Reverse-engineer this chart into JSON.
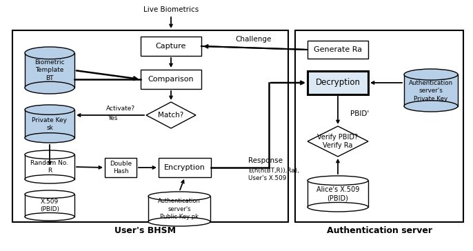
{
  "bg_color": "#ffffff",
  "user_bhsm_label": "User's BHSM",
  "auth_server_label": "Authentication server",
  "live_biometrics": "Live Biometrics",
  "capture_label": "Capture",
  "comparison_label": "Comparison",
  "match_label": "Match?",
  "activate_label": "Activate?",
  "yes_label": "Yes",
  "double_hash_label": "Double\nHash",
  "encryption_label": "Encryption",
  "generate_ra_label": "Generate Ra",
  "decryption_label": "Decryption",
  "verify_label": "Verify PBID?\nVerify Ra",
  "biometric_template_label": "Biometric\nTemplate\nBT",
  "private_key_label": "Private Key\nsk",
  "random_no_label": "Random No.\nR",
  "x509_label": "X.509\n(PBID)",
  "auth_pubkey_label": "Authentication\nserver's\nPublic Key pk",
  "auth_privkey_label": "Authentication\nserver's\nPrivate Key",
  "alices_x509_label": "Alice's X.509\n(PBID)",
  "challenge_label": "Challenge",
  "response_label": "Response",
  "pbid_prime_label": "PBID'",
  "encrypted_label": "E(h(h(BT,R)),Ra),\nUser's X.509"
}
